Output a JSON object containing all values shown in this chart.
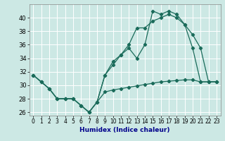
{
  "xlabel": "Humidex (Indice chaleur)",
  "bg_color": "#cce8e4",
  "grid_color": "#ffffff",
  "line_color": "#1a6b5a",
  "xlim": [
    -0.5,
    23.5
  ],
  "ylim": [
    25.5,
    42.0
  ],
  "yticks": [
    26,
    28,
    30,
    32,
    34,
    36,
    38,
    40
  ],
  "xticks": [
    0,
    1,
    2,
    3,
    4,
    5,
    6,
    7,
    8,
    9,
    10,
    11,
    12,
    13,
    14,
    15,
    16,
    17,
    18,
    19,
    20,
    21,
    22,
    23
  ],
  "curve1_x": [
    0,
    1,
    2,
    3,
    4,
    5,
    6,
    7,
    8,
    9,
    10,
    11,
    12,
    13,
    14,
    15,
    16,
    17,
    18,
    19,
    20,
    21,
    22,
    23
  ],
  "curve1_y": [
    31.5,
    30.5,
    29.5,
    28.0,
    28.0,
    28.0,
    27.0,
    26.0,
    27.5,
    31.5,
    33.5,
    34.5,
    35.5,
    34.0,
    36.0,
    41.0,
    40.5,
    41.0,
    40.5,
    39.0,
    35.5,
    30.5,
    30.5,
    30.5
  ],
  "curve2_x": [
    0,
    1,
    2,
    3,
    4,
    5,
    6,
    7,
    8,
    9,
    10,
    11,
    12,
    13,
    14,
    15,
    16,
    17,
    18,
    19,
    20,
    21,
    22,
    23
  ],
  "curve2_y": [
    31.5,
    30.5,
    29.5,
    28.0,
    28.0,
    28.0,
    27.0,
    26.0,
    27.5,
    31.5,
    33.0,
    34.5,
    36.0,
    38.5,
    38.5,
    39.5,
    40.0,
    40.5,
    40.0,
    39.0,
    37.5,
    35.5,
    30.5,
    30.5
  ],
  "curve3_x": [
    0,
    1,
    2,
    3,
    4,
    5,
    6,
    7,
    8,
    9,
    10,
    11,
    12,
    13,
    14,
    15,
    16,
    17,
    18,
    19,
    20,
    21,
    22,
    23
  ],
  "curve3_y": [
    31.5,
    30.5,
    29.5,
    28.0,
    28.0,
    28.0,
    27.0,
    26.0,
    27.5,
    29.0,
    29.3,
    29.5,
    29.7,
    29.9,
    30.1,
    30.3,
    30.5,
    30.6,
    30.7,
    30.8,
    30.8,
    30.5,
    30.5,
    30.5
  ],
  "xlabel_color": "#00008b",
  "xlabel_fontsize": 6.5,
  "tick_fontsize": 5.5,
  "ytick_fontsize": 6.0,
  "lw": 0.9,
  "ms": 2.2
}
